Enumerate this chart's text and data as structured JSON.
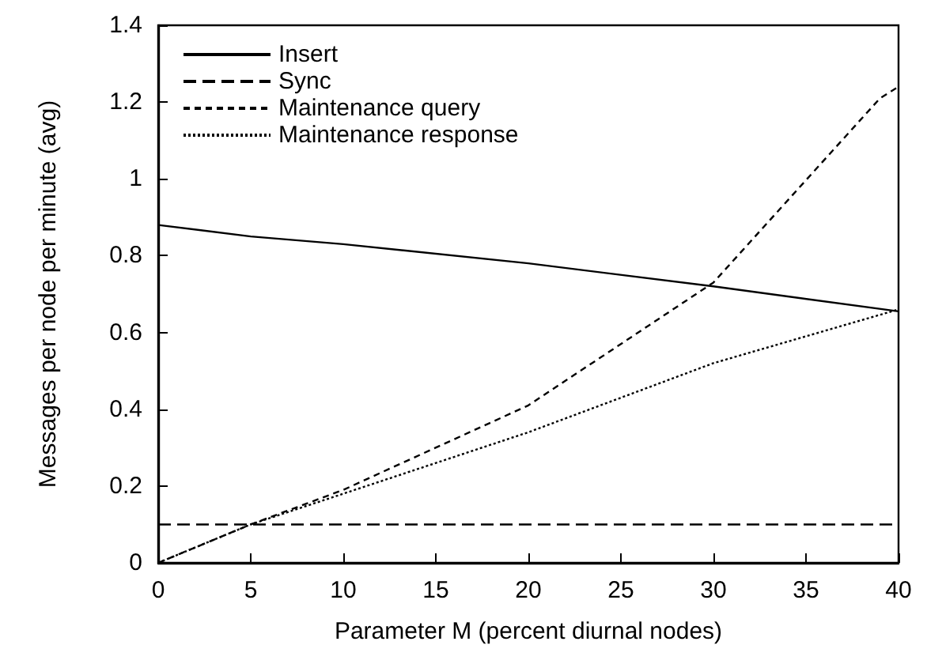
{
  "chart_data": {
    "type": "line",
    "xlabel": "Parameter M (percent diurnal nodes)",
    "ylabel": "Messages per node per minute (avg)",
    "xlim": [
      0,
      40
    ],
    "xticks": [
      0,
      5,
      10,
      15,
      20,
      25,
      30,
      35,
      40
    ],
    "ylim": [
      0,
      1.4
    ],
    "yticks": [
      0,
      0.2,
      0.4,
      0.6,
      0.8,
      1,
      1.2,
      1.4
    ],
    "grid": false,
    "legend": "top left",
    "marker": "none",
    "series": [
      {
        "name": "Insert",
        "color": "#000000",
        "line_style": "solid",
        "x": [
          0,
          5,
          10,
          20,
          30,
          40
        ],
        "values": [
          0.88,
          0.85,
          0.83,
          0.78,
          0.72,
          0.655
        ]
      },
      {
        "name": "Sync",
        "color": "#000000",
        "line_style": "dashed",
        "x": [
          0,
          40
        ],
        "values": [
          0.1,
          0.1
        ]
      },
      {
        "name": "Maintenance query",
        "color": "#000000",
        "line_style": "shortdash",
        "x": [
          0,
          2,
          5,
          10,
          20,
          30,
          39,
          40
        ],
        "values": [
          0,
          0.04,
          0.1,
          0.19,
          0.41,
          0.73,
          1.21,
          1.24
        ]
      },
      {
        "name": "Maintenance response",
        "color": "#000000",
        "line_style": "dotted",
        "x": [
          0,
          5,
          10,
          20,
          30,
          40
        ],
        "values": [
          0,
          0.1,
          0.18,
          0.34,
          0.52,
          0.66
        ]
      }
    ]
  }
}
